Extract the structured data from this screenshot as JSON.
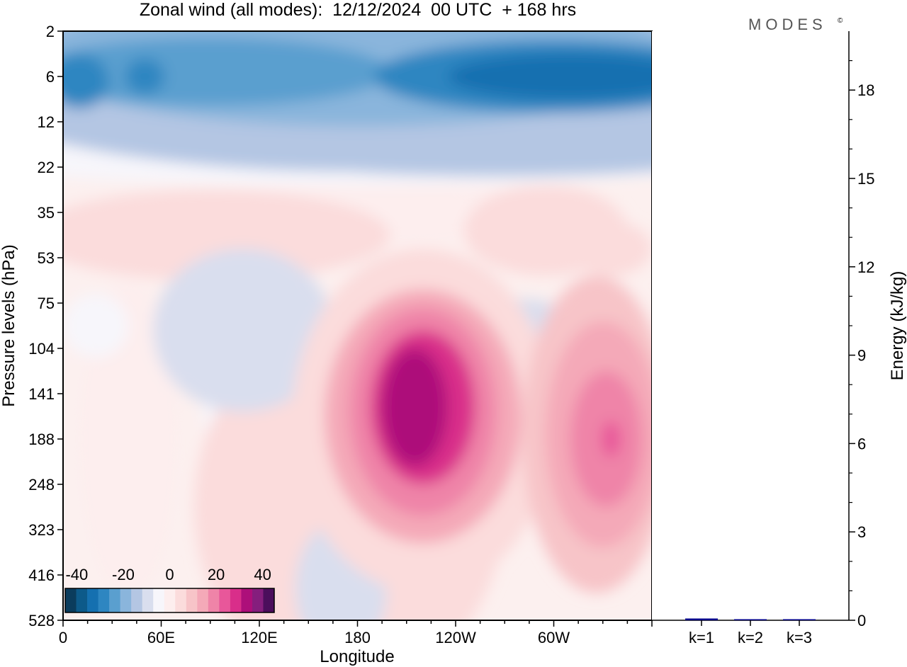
{
  "chart_data": [
    {
      "type": "heatmap",
      "title": "Zonal wind (all modes):  12/12/2024  00 UTC  + 168 hrs",
      "xlabel": "Longitude",
      "ylabel": "Pressure levels (hPa)",
      "x_ticks": [
        "0",
        "60E",
        "120E",
        "180",
        "120W",
        "60W"
      ],
      "x_tick_positions_deg": [
        0,
        60,
        120,
        180,
        240,
        300
      ],
      "xlim": [
        0,
        360
      ],
      "y_levels": [
        "2",
        "6",
        "12",
        "22",
        "35",
        "53",
        "75",
        "104",
        "141",
        "188",
        "248",
        "323",
        "416",
        "528"
      ],
      "y_levels_values": [
        2,
        6,
        12,
        22,
        35,
        53,
        75,
        104,
        141,
        188,
        248,
        323,
        416,
        528
      ],
      "y_scale": "model levels (top = 2 hPa, bottom = 528 hPa)",
      "colorbar": {
        "ticks": [
          "-40",
          "-20",
          "0",
          "20",
          "40"
        ],
        "range": [
          -45,
          45
        ],
        "step": 5,
        "placement": "bottom-left",
        "colors": [
          "#0b3c5d",
          "#0d5a8a",
          "#1570b0",
          "#2e86c1",
          "#5a9fcf",
          "#8ab5dc",
          "#b4c6e3",
          "#d9deee",
          "#f7f6fb",
          "#fdeeee",
          "#fbdcdc",
          "#f7c4c8",
          "#f4a9b8",
          "#ef84a8",
          "#e8579a",
          "#d92e8a",
          "#ad0f7a",
          "#851e7d",
          "#4b0e5c"
        ]
      },
      "features": [
        {
          "description": "stratospheric easterlies",
          "lon_range": [
            0,
            360
          ],
          "levels": "2-12 hPa",
          "value_range": [
            -35,
            -10
          ]
        },
        {
          "description": "westerly jet core",
          "lon_center": 220,
          "level": "141 hPa",
          "max_value": 35
        },
        {
          "description": "westerly jet core",
          "lon_center": 330,
          "level": "188 hPa",
          "max_value": 30
        }
      ]
    },
    {
      "type": "bar",
      "categories": [
        "k=1",
        "k=2",
        "k=3"
      ],
      "values": [
        0.06,
        0.02,
        0.01
      ],
      "ylabel": "Energy (kJ/kg)",
      "ylim": [
        0,
        20
      ],
      "y_ticks": [
        "0",
        "3",
        "6",
        "9",
        "12",
        "15",
        "18"
      ],
      "y_tick_values": [
        0,
        3,
        6,
        9,
        12,
        15,
        18
      ],
      "bar_color": "#00008b"
    }
  ],
  "branding": {
    "logo_text": "MODES"
  }
}
